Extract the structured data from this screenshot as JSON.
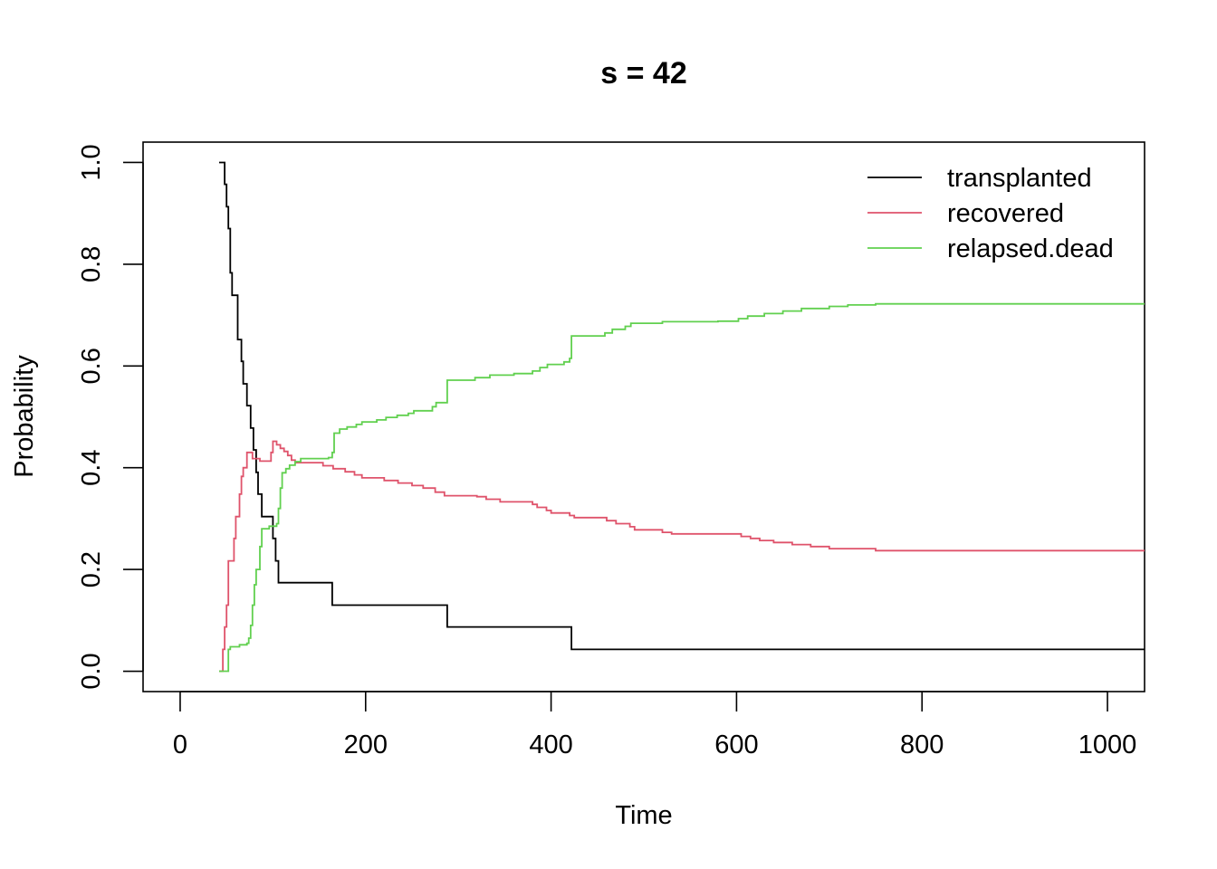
{
  "chart_data": {
    "type": "line",
    "title": "s = 42",
    "xlabel": "Time",
    "ylabel": "Probability",
    "xlim": [
      -40,
      1040
    ],
    "ylim": [
      -0.04,
      1.04
    ],
    "x_ticks": [
      0,
      200,
      400,
      600,
      800,
      1000
    ],
    "x_tick_labels": [
      "0",
      "200",
      "400",
      "600",
      "800",
      "1000"
    ],
    "y_ticks": [
      0.0,
      0.2,
      0.4,
      0.6,
      0.8,
      1.0
    ],
    "y_tick_labels": [
      "0.0",
      "0.2",
      "0.4",
      "0.6",
      "0.8",
      "1.0"
    ],
    "grid": false,
    "legend_position": "top-right",
    "step": true,
    "series": [
      {
        "name": "transplanted",
        "color": "#000000",
        "points": [
          [
            42,
            1.0
          ],
          [
            48,
            1.0
          ],
          [
            48,
            0.957
          ],
          [
            50,
            0.913
          ],
          [
            52,
            0.87
          ],
          [
            54,
            0.783
          ],
          [
            56,
            0.739
          ],
          [
            62,
            0.739
          ],
          [
            62,
            0.652
          ],
          [
            66,
            0.652
          ],
          [
            66,
            0.609
          ],
          [
            68,
            0.565
          ],
          [
            72,
            0.522
          ],
          [
            76,
            0.522
          ],
          [
            76,
            0.478
          ],
          [
            79,
            0.435
          ],
          [
            82,
            0.391
          ],
          [
            84,
            0.348
          ],
          [
            88,
            0.304
          ],
          [
            100,
            0.304
          ],
          [
            100,
            0.261
          ],
          [
            103,
            0.217
          ],
          [
            106,
            0.174
          ],
          [
            164,
            0.174
          ],
          [
            164,
            0.13
          ],
          [
            288,
            0.13
          ],
          [
            288,
            0.087
          ],
          [
            422,
            0.087
          ],
          [
            422,
            0.043
          ],
          [
            1040,
            0.043
          ]
        ]
      },
      {
        "name": "recovered",
        "color": "#DF536B",
        "points": [
          [
            42,
            0.0
          ],
          [
            46,
            0.0
          ],
          [
            46,
            0.043
          ],
          [
            48,
            0.087
          ],
          [
            50,
            0.13
          ],
          [
            52,
            0.217
          ],
          [
            56,
            0.217
          ],
          [
            58,
            0.261
          ],
          [
            60,
            0.304
          ],
          [
            64,
            0.304
          ],
          [
            64,
            0.348
          ],
          [
            66,
            0.383
          ],
          [
            68,
            0.4
          ],
          [
            72,
            0.43
          ],
          [
            76,
            0.43
          ],
          [
            78,
            0.418
          ],
          [
            86,
            0.418
          ],
          [
            86,
            0.413
          ],
          [
            96,
            0.413
          ],
          [
            98,
            0.43
          ],
          [
            100,
            0.452
          ],
          [
            104,
            0.445
          ],
          [
            108,
            0.438
          ],
          [
            112,
            0.432
          ],
          [
            116,
            0.424
          ],
          [
            120,
            0.415
          ],
          [
            124,
            0.41
          ],
          [
            150,
            0.41
          ],
          [
            154,
            0.404
          ],
          [
            165,
            0.398
          ],
          [
            178,
            0.392
          ],
          [
            188,
            0.386
          ],
          [
            196,
            0.38
          ],
          [
            220,
            0.375
          ],
          [
            235,
            0.37
          ],
          [
            250,
            0.365
          ],
          [
            262,
            0.36
          ],
          [
            275,
            0.352
          ],
          [
            285,
            0.345
          ],
          [
            320,
            0.343
          ],
          [
            330,
            0.338
          ],
          [
            345,
            0.333
          ],
          [
            380,
            0.328
          ],
          [
            385,
            0.322
          ],
          [
            395,
            0.316
          ],
          [
            400,
            0.311
          ],
          [
            420,
            0.306
          ],
          [
            425,
            0.302
          ],
          [
            460,
            0.296
          ],
          [
            470,
            0.29
          ],
          [
            485,
            0.284
          ],
          [
            490,
            0.278
          ],
          [
            520,
            0.273
          ],
          [
            530,
            0.27
          ],
          [
            595,
            0.27
          ],
          [
            605,
            0.265
          ],
          [
            615,
            0.261
          ],
          [
            625,
            0.257
          ],
          [
            640,
            0.253
          ],
          [
            660,
            0.249
          ],
          [
            680,
            0.245
          ],
          [
            700,
            0.241
          ],
          [
            750,
            0.237
          ],
          [
            1040,
            0.237
          ]
        ]
      },
      {
        "name": "relapsed.dead",
        "color": "#61D04F",
        "points": [
          [
            42,
            0.0
          ],
          [
            52,
            0.0
          ],
          [
            52,
            0.043
          ],
          [
            54,
            0.048
          ],
          [
            64,
            0.052
          ],
          [
            72,
            0.055
          ],
          [
            74,
            0.065
          ],
          [
            76,
            0.09
          ],
          [
            78,
            0.13
          ],
          [
            80,
            0.17
          ],
          [
            82,
            0.2
          ],
          [
            86,
            0.245
          ],
          [
            88,
            0.28
          ],
          [
            96,
            0.285
          ],
          [
            104,
            0.29
          ],
          [
            106,
            0.32
          ],
          [
            108,
            0.36
          ],
          [
            110,
            0.39
          ],
          [
            114,
            0.398
          ],
          [
            118,
            0.405
          ],
          [
            124,
            0.412
          ],
          [
            130,
            0.418
          ],
          [
            160,
            0.42
          ],
          [
            164,
            0.43
          ],
          [
            166,
            0.468
          ],
          [
            172,
            0.476
          ],
          [
            180,
            0.48
          ],
          [
            190,
            0.485
          ],
          [
            196,
            0.49
          ],
          [
            212,
            0.494
          ],
          [
            222,
            0.499
          ],
          [
            234,
            0.503
          ],
          [
            246,
            0.507
          ],
          [
            252,
            0.512
          ],
          [
            270,
            0.512
          ],
          [
            272,
            0.52
          ],
          [
            276,
            0.528
          ],
          [
            288,
            0.528
          ],
          [
            288,
            0.572
          ],
          [
            318,
            0.572
          ],
          [
            318,
            0.577
          ],
          [
            334,
            0.582
          ],
          [
            360,
            0.585
          ],
          [
            380,
            0.59
          ],
          [
            388,
            0.597
          ],
          [
            396,
            0.603
          ],
          [
            414,
            0.608
          ],
          [
            420,
            0.615
          ],
          [
            422,
            0.659
          ],
          [
            452,
            0.659
          ],
          [
            458,
            0.665
          ],
          [
            466,
            0.672
          ],
          [
            480,
            0.678
          ],
          [
            486,
            0.684
          ],
          [
            520,
            0.687
          ],
          [
            580,
            0.688
          ],
          [
            600,
            0.688
          ],
          [
            602,
            0.693
          ],
          [
            612,
            0.698
          ],
          [
            630,
            0.703
          ],
          [
            650,
            0.708
          ],
          [
            670,
            0.713
          ],
          [
            700,
            0.717
          ],
          [
            720,
            0.72
          ],
          [
            750,
            0.722
          ],
          [
            1040,
            0.722
          ]
        ]
      }
    ]
  }
}
